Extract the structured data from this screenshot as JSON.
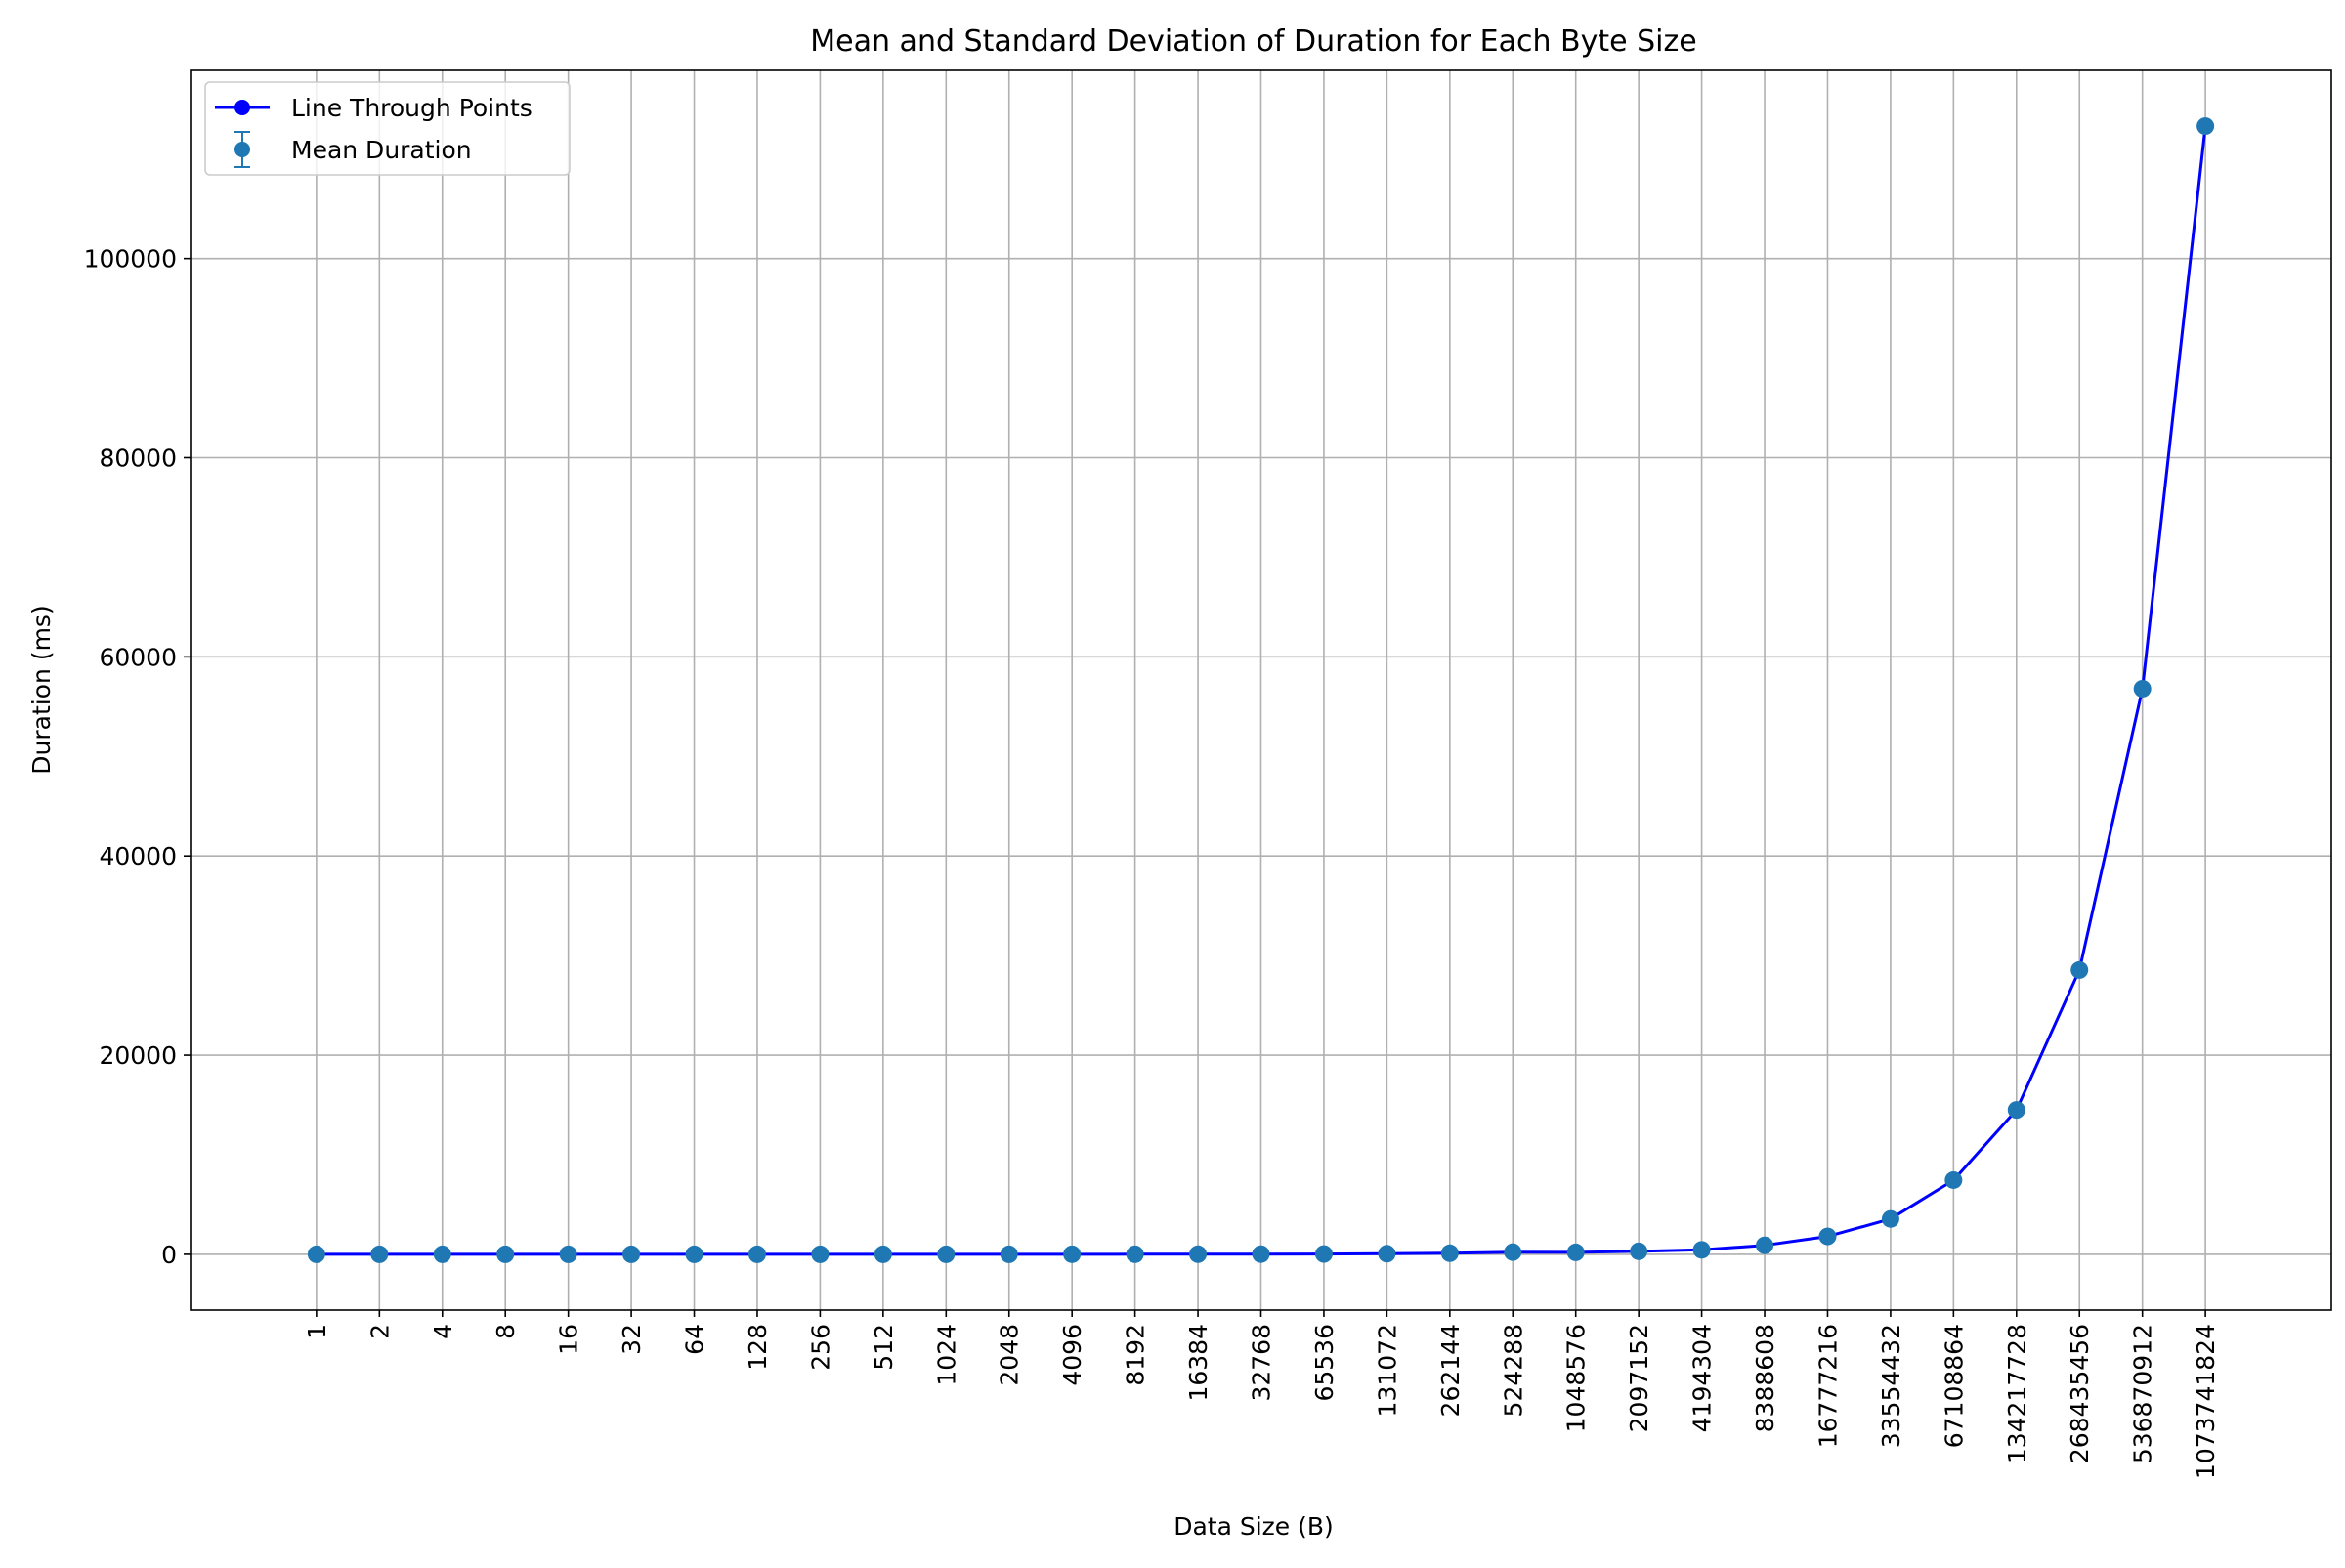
{
  "chart_data": {
    "type": "line",
    "title": "Mean and Standard Deviation of Duration for Each Byte Size",
    "xlabel": "Data Size (B)",
    "ylabel": "Duration (ms)",
    "categories": [
      "1",
      "2",
      "4",
      "8",
      "16",
      "32",
      "64",
      "128",
      "256",
      "512",
      "1024",
      "2048",
      "4096",
      "8192",
      "16384",
      "32768",
      "65536",
      "131072",
      "262144",
      "524288",
      "1048576",
      "2097152",
      "4194304",
      "8388608",
      "16777216",
      "33554432",
      "67108864",
      "134217728",
      "268435456",
      "536870912",
      "1073741824"
    ],
    "series": [
      {
        "name": "Line Through Points",
        "color": "#0000ff",
        "values": [
          1,
          1,
          1,
          1,
          1,
          1,
          1,
          1,
          1,
          2,
          2,
          3,
          5,
          8,
          12,
          20,
          35,
          60,
          110,
          220,
          200,
          300,
          450,
          900,
          1800,
          3550,
          7450,
          14500,
          28550,
          56800,
          113300
        ]
      },
      {
        "name": "Mean Duration",
        "color": "#1f77b4",
        "values": [
          1,
          1,
          1,
          1,
          1,
          1,
          1,
          1,
          1,
          2,
          2,
          3,
          5,
          8,
          12,
          20,
          35,
          60,
          110,
          220,
          200,
          300,
          450,
          900,
          1800,
          3550,
          7450,
          14500,
          28550,
          56800,
          113300
        ]
      }
    ],
    "y_ticks": [
      0,
      20000,
      40000,
      60000,
      80000,
      100000
    ],
    "y_tick_labels": [
      "0",
      "20000",
      "40000",
      "60000",
      "80000",
      "100000"
    ],
    "ylim": [
      -5600,
      118900
    ],
    "grid": true,
    "legend": "top-left"
  }
}
